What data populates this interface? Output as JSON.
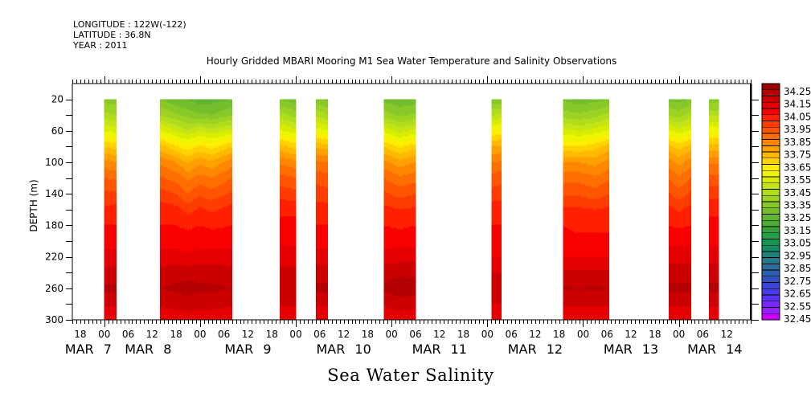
{
  "header": {
    "longitude": "LONGITUDE : 122W(-122)",
    "latitude": "LATITUDE : 36.8N",
    "year": "YEAR : 2011"
  },
  "chart_data": {
    "type": "heatmap",
    "title": "Hourly Gridded MBARI Mooring M1 Sea Water Temperature and Salinity Observations",
    "variable_label": "Sea Water Salinity",
    "ylabel": "DEPTH (m)",
    "xlabel": "",
    "x_hours_from_08_mar_2011": true,
    "xlim": [
      -8,
      162
    ],
    "ylim": [
      0,
      300
    ],
    "y_reversed": true,
    "grid": false,
    "legend": "colorbar-right",
    "y_ticks": [
      20,
      40,
      60,
      80,
      100,
      120,
      140,
      160,
      180,
      200,
      220,
      240,
      260,
      280,
      300
    ],
    "y_tick_labels": [
      "20",
      "60",
      "100",
      "140",
      "180",
      "220",
      "260",
      "300"
    ],
    "x_ticks": [
      {
        "hour": -6,
        "label": "18"
      },
      {
        "hour": 0,
        "label": "00"
      },
      {
        "hour": 6,
        "label": "06"
      },
      {
        "hour": 12,
        "label": "12"
      },
      {
        "hour": 18,
        "label": "18"
      },
      {
        "hour": 24,
        "label": "00"
      },
      {
        "hour": 30,
        "label": "06"
      },
      {
        "hour": 36,
        "label": "12"
      },
      {
        "hour": 42,
        "label": "18"
      },
      {
        "hour": 48,
        "label": "00"
      },
      {
        "hour": 54,
        "label": "06"
      },
      {
        "hour": 60,
        "label": "12"
      },
      {
        "hour": 66,
        "label": "18"
      },
      {
        "hour": 72,
        "label": "00"
      },
      {
        "hour": 78,
        "label": "06"
      },
      {
        "hour": 84,
        "label": "12"
      },
      {
        "hour": 90,
        "label": "18"
      },
      {
        "hour": 96,
        "label": "00"
      },
      {
        "hour": 102,
        "label": "06"
      },
      {
        "hour": 108,
        "label": "12"
      },
      {
        "hour": 114,
        "label": "18"
      },
      {
        "hour": 120,
        "label": "00"
      },
      {
        "hour": 126,
        "label": "06"
      },
      {
        "hour": 132,
        "label": "12"
      },
      {
        "hour": 138,
        "label": "18"
      },
      {
        "hour": 144,
        "label": "00"
      },
      {
        "hour": 150,
        "label": "06"
      },
      {
        "hour": 156,
        "label": "12"
      }
    ],
    "day_labels": [
      {
        "label": "MAR 7",
        "hour": -4
      },
      {
        "label": "MAR 8",
        "hour": 11
      },
      {
        "label": "MAR 9",
        "hour": 36
      },
      {
        "label": "MAR 10",
        "hour": 60
      },
      {
        "label": "MAR 11",
        "hour": 84
      },
      {
        "label": "MAR 12",
        "hour": 108
      },
      {
        "label": "MAR 13",
        "hour": 132
      },
      {
        "label": "MAR 14",
        "hour": 153
      }
    ],
    "colorbar": {
      "min": 32.4,
      "step": 0.05,
      "colors": [
        "#c800ff",
        "#961eff",
        "#7828ff",
        "#5a32f5",
        "#4b3ce6",
        "#3c46d2",
        "#3250be",
        "#2d60aa",
        "#2d6e9b",
        "#28788c",
        "#1e8278",
        "#148c64",
        "#14964f",
        "#22a046",
        "#38a03c",
        "#4caa37",
        "#60b432",
        "#74be2d",
        "#88c828",
        "#9cd223",
        "#b0dc1e",
        "#c4e418",
        "#d8ec00",
        "#eef500",
        "#ffee00",
        "#ffd200",
        "#ffb900",
        "#ffa000",
        "#ff8700",
        "#ff6e00",
        "#ff5500",
        "#ff3c00",
        "#ff2000",
        "#f80000",
        "#e40000",
        "#cc0000",
        "#b40000",
        "#9a0000"
      ],
      "labels": [
        "34.25",
        "34.15",
        "34.05",
        "33.95",
        "33.85",
        "33.75",
        "33.65",
        "33.55",
        "33.45",
        "33.35",
        "33.25",
        "33.15",
        "33.05",
        "32.95",
        "32.85",
        "32.75",
        "32.65",
        "32.55",
        "32.45"
      ]
    },
    "depths": [
      20,
      40,
      60,
      80,
      100,
      120,
      140,
      160,
      180,
      200,
      220,
      240,
      260,
      280,
      300
    ],
    "segments": [
      {
        "start": 0,
        "end": 3,
        "profiles": [
          {
            "t": 0,
            "values": [
              33.33,
              33.42,
              33.55,
              33.7,
              33.82,
              33.9,
              33.96,
              34.01,
              34.05,
              34.08,
              34.12,
              34.17,
              34.21,
              34.16,
              34.08
            ]
          },
          {
            "t": 3,
            "values": [
              33.32,
              33.4,
              33.53,
              33.68,
              33.8,
              33.89,
              33.96,
              34.02,
              34.05,
              34.08,
              34.12,
              34.17,
              34.21,
              34.16,
              34.09
            ]
          }
        ]
      },
      {
        "start": 14,
        "end": 32,
        "profiles": [
          {
            "t": 14,
            "values": [
              33.3,
              33.4,
              33.56,
              33.72,
              33.84,
              33.91,
              33.97,
              34.03,
              34.05,
              34.08,
              34.12,
              34.17,
              34.2,
              34.16,
              34.1
            ]
          },
          {
            "t": 18,
            "values": [
              33.26,
              33.36,
              33.5,
              33.66,
              33.8,
              33.88,
              33.95,
              34.02,
              34.05,
              34.08,
              34.12,
              34.18,
              34.21,
              34.17,
              34.11
            ]
          },
          {
            "t": 21,
            "values": [
              33.25,
              33.33,
              33.46,
              33.62,
              33.74,
              33.84,
              33.9,
              33.98,
              34.04,
              34.07,
              34.11,
              34.18,
              34.22,
              34.18,
              34.12
            ]
          },
          {
            "t": 24,
            "values": [
              33.22,
              33.31,
              33.5,
              33.66,
              33.79,
              33.87,
              33.94,
              34.01,
              34.05,
              34.08,
              34.12,
              34.18,
              34.21,
              34.17,
              34.11
            ]
          },
          {
            "t": 27,
            "values": [
              33.23,
              33.3,
              33.47,
              33.63,
              33.76,
              33.85,
              33.92,
              33.99,
              34.04,
              34.08,
              34.12,
              34.18,
              34.21,
              34.17,
              34.11
            ]
          },
          {
            "t": 32,
            "values": [
              33.25,
              33.35,
              33.52,
              33.7,
              33.83,
              33.9,
              33.96,
              34.02,
              34.05,
              34.08,
              34.12,
              34.17,
              34.2,
              34.16,
              34.1
            ]
          }
        ]
      },
      {
        "start": 44,
        "end": 48,
        "profiles": [
          {
            "t": 44,
            "values": [
              33.3,
              33.42,
              33.56,
              33.72,
              33.84,
              33.92,
              33.98,
              34.04,
              34.06,
              34.09,
              34.12,
              34.17,
              34.2,
              34.16,
              34.1
            ]
          },
          {
            "t": 48,
            "values": [
              33.27,
              33.38,
              33.52,
              33.68,
              33.82,
              33.9,
              33.97,
              34.04,
              34.06,
              34.09,
              34.12,
              34.17,
              34.2,
              34.16,
              34.1
            ]
          }
        ]
      },
      {
        "start": 53,
        "end": 56,
        "profiles": [
          {
            "t": 53,
            "values": [
              33.31,
              33.44,
              33.58,
              33.74,
              33.86,
              33.93,
              33.98,
              34.02,
              34.05,
              34.08,
              34.12,
              34.18,
              34.21,
              34.16,
              34.1
            ]
          },
          {
            "t": 56,
            "values": [
              33.29,
              33.4,
              33.55,
              33.72,
              33.85,
              33.92,
              33.97,
              34.02,
              34.05,
              34.08,
              34.12,
              34.18,
              34.21,
              34.16,
              34.1
            ]
          }
        ]
      },
      {
        "start": 70,
        "end": 78,
        "profiles": [
          {
            "t": 70,
            "values": [
              33.28,
              33.38,
              33.54,
              33.7,
              33.82,
              33.9,
              33.96,
              34.02,
              34.05,
              34.08,
              34.12,
              34.18,
              34.21,
              34.16,
              34.1
            ]
          },
          {
            "t": 74,
            "values": [
              33.26,
              33.34,
              33.48,
              33.64,
              33.77,
              33.86,
              33.93,
              34.0,
              34.04,
              34.08,
              34.13,
              34.19,
              34.23,
              34.18,
              34.11
            ]
          },
          {
            "t": 78,
            "values": [
              33.27,
              33.36,
              33.52,
              33.68,
              33.8,
              33.88,
              33.95,
              34.01,
              34.05,
              34.08,
              34.13,
              34.19,
              34.22,
              34.17,
              34.11
            ]
          }
        ]
      },
      {
        "start": 97,
        "end": 99.5,
        "profiles": [
          {
            "t": 97,
            "values": [
              33.3,
              33.45,
              33.6,
              33.75,
              33.85,
              33.92,
              33.97,
              34.03,
              34.05,
              34.07,
              34.1,
              34.15,
              34.2,
              34.15,
              34.1
            ]
          },
          {
            "t": 99.5,
            "values": [
              33.31,
              33.46,
              33.62,
              33.76,
              33.86,
              33.93,
              33.98,
              34.03,
              34.05,
              34.07,
              34.1,
              34.15,
              34.19,
              34.15,
              34.1
            ]
          }
        ]
      },
      {
        "start": 115,
        "end": 126.5,
        "profiles": [
          {
            "t": 115,
            "values": [
              33.29,
              33.38,
              33.52,
              33.66,
              33.8,
              33.88,
              33.94,
              34.01,
              34.05,
              34.06,
              34.1,
              34.16,
              34.21,
              34.16,
              34.09
            ]
          },
          {
            "t": 119,
            "values": [
              33.27,
              33.36,
              33.5,
              33.65,
              33.8,
              33.88,
              33.94,
              34.01,
              34.04,
              34.06,
              34.1,
              34.16,
              34.2,
              34.16,
              34.09
            ]
          },
          {
            "t": 123,
            "values": [
              33.28,
              33.38,
              33.52,
              33.68,
              33.78,
              33.86,
              33.92,
              34.0,
              34.04,
              34.06,
              34.1,
              34.16,
              34.21,
              34.16,
              34.09
            ]
          },
          {
            "t": 126.5,
            "values": [
              33.3,
              33.42,
              33.56,
              33.72,
              33.82,
              33.89,
              33.95,
              34.01,
              34.04,
              34.06,
              34.1,
              34.16,
              34.2,
              34.16,
              34.09
            ]
          }
        ]
      },
      {
        "start": 141.5,
        "end": 147,
        "profiles": [
          {
            "t": 141.5,
            "values": [
              33.29,
              33.4,
              33.56,
              33.72,
              33.83,
              33.9,
              33.96,
              34.02,
              34.05,
              34.09,
              34.13,
              34.18,
              34.21,
              34.16,
              34.1
            ]
          },
          {
            "t": 144,
            "values": [
              33.28,
              33.38,
              33.52,
              33.68,
              33.78,
              33.86,
              33.92,
              33.99,
              34.04,
              34.09,
              34.13,
              34.18,
              34.21,
              34.16,
              34.1
            ]
          },
          {
            "t": 147,
            "values": [
              33.3,
              33.42,
              33.56,
              33.72,
              33.83,
              33.9,
              33.96,
              34.02,
              34.05,
              34.09,
              34.13,
              34.18,
              34.21,
              34.16,
              34.1
            ]
          }
        ]
      },
      {
        "start": 151.5,
        "end": 154,
        "profiles": [
          {
            "t": 151.5,
            "values": [
              33.32,
              33.44,
              33.58,
              33.72,
              33.84,
              33.92,
              33.98,
              34.04,
              34.06,
              34.09,
              34.13,
              34.18,
              34.21,
              34.16,
              34.1
            ]
          },
          {
            "t": 154,
            "values": [
              33.32,
              33.44,
              33.58,
              33.72,
              33.84,
              33.92,
              33.98,
              34.04,
              34.06,
              34.09,
              34.13,
              34.18,
              34.21,
              34.16,
              34.1
            ]
          }
        ]
      }
    ]
  }
}
